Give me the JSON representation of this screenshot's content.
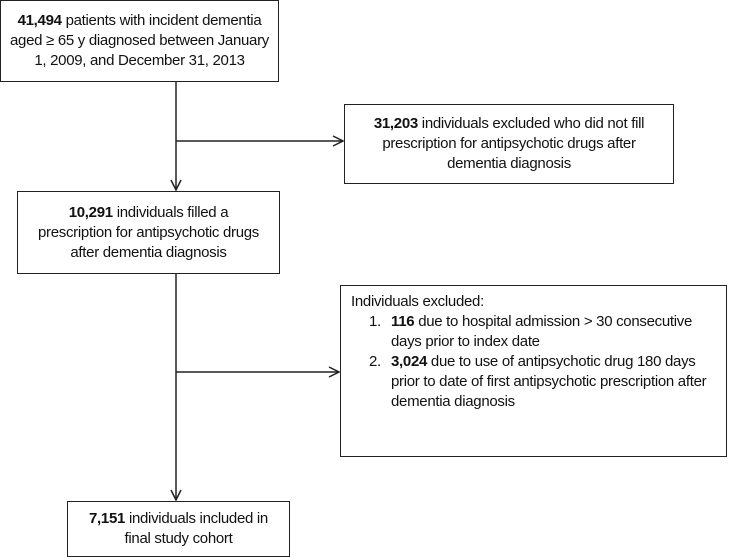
{
  "nodes": [
    {
      "count": "41,494",
      "text": "patients with incident dementia aged ≥ 65 y diagnosed between January 1, 2009, and December 31, 2013"
    },
    {
      "count": "31,203",
      "text": "individuals excluded who did not fill prescription for antipsychotic drugs after dementia diagnosis"
    },
    {
      "count": "10,291",
      "text": "individuals filled a prescription for antipsychotic drugs after dementia diagnosis"
    },
    {
      "heading": "Individuals excluded:",
      "items": [
        {
          "marker": "1.",
          "count": "116",
          "text": "due to hospital admission > 30 consecutive days prior to index date"
        },
        {
          "marker": "2.",
          "count": "3,024",
          "text": "due to use of antipsychotic drug 180 days prior to date of first antipsychotic prescription after dementia diagnosis"
        }
      ]
    },
    {
      "count": "7,151",
      "text": "individuals included in final study cohort"
    }
  ]
}
